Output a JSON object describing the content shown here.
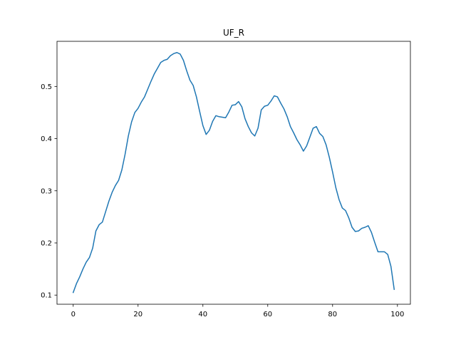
{
  "chart_data": {
    "type": "line",
    "title": "UF_R",
    "xlabel": "",
    "ylabel": "",
    "xlim": [
      -5,
      104
    ],
    "ylim": [
      0.0825,
      0.5865
    ],
    "x_ticks": [
      0,
      20,
      40,
      60,
      80,
      100
    ],
    "x_tick_labels": [
      "0",
      "20",
      "40",
      "60",
      "80",
      "100"
    ],
    "y_ticks": [
      0.1,
      0.2,
      0.3,
      0.4,
      0.5
    ],
    "y_tick_labels": [
      "0.1",
      "0.2",
      "0.3",
      "0.4",
      "0.5"
    ],
    "grid": false,
    "series": [
      {
        "color": "#1f77b4",
        "x": [
          0,
          1,
          2,
          3,
          4,
          5,
          6,
          7,
          8,
          9,
          10,
          11,
          12,
          13,
          14,
          15,
          16,
          17,
          18,
          19,
          20,
          21,
          22,
          23,
          24,
          25,
          26,
          27,
          28,
          29,
          30,
          31,
          32,
          33,
          34,
          35,
          36,
          37,
          38,
          39,
          40,
          41,
          42,
          43,
          44,
          45,
          46,
          47,
          48,
          49,
          50,
          51,
          52,
          53,
          54,
          55,
          56,
          57,
          58,
          59,
          60,
          61,
          62,
          63,
          64,
          65,
          66,
          67,
          68,
          69,
          70,
          71,
          72,
          73,
          74,
          75,
          76,
          77,
          78,
          79,
          80,
          81,
          82,
          83,
          84,
          85,
          86,
          87,
          88,
          89,
          90,
          91,
          92,
          93,
          94,
          95,
          96,
          97,
          98,
          99
        ],
        "y": [
          0.105,
          0.122,
          0.135,
          0.15,
          0.163,
          0.172,
          0.19,
          0.223,
          0.235,
          0.24,
          0.26,
          0.28,
          0.297,
          0.31,
          0.32,
          0.34,
          0.37,
          0.405,
          0.432,
          0.45,
          0.458,
          0.47,
          0.48,
          0.495,
          0.51,
          0.524,
          0.535,
          0.546,
          0.55,
          0.552,
          0.559,
          0.563,
          0.565,
          0.562,
          0.55,
          0.53,
          0.512,
          0.502,
          0.48,
          0.452,
          0.425,
          0.408,
          0.416,
          0.433,
          0.444,
          0.442,
          0.441,
          0.44,
          0.451,
          0.464,
          0.465,
          0.471,
          0.461,
          0.438,
          0.423,
          0.411,
          0.405,
          0.42,
          0.455,
          0.462,
          0.464,
          0.472,
          0.482,
          0.48,
          0.468,
          0.457,
          0.442,
          0.423,
          0.411,
          0.398,
          0.388,
          0.376,
          0.386,
          0.403,
          0.42,
          0.423,
          0.41,
          0.404,
          0.388,
          0.364,
          0.336,
          0.306,
          0.283,
          0.267,
          0.262,
          0.248,
          0.23,
          0.222,
          0.223,
          0.228,
          0.23,
          0.233,
          0.22,
          0.201,
          0.183,
          0.183,
          0.183,
          0.178,
          0.155,
          0.111
        ]
      }
    ]
  }
}
